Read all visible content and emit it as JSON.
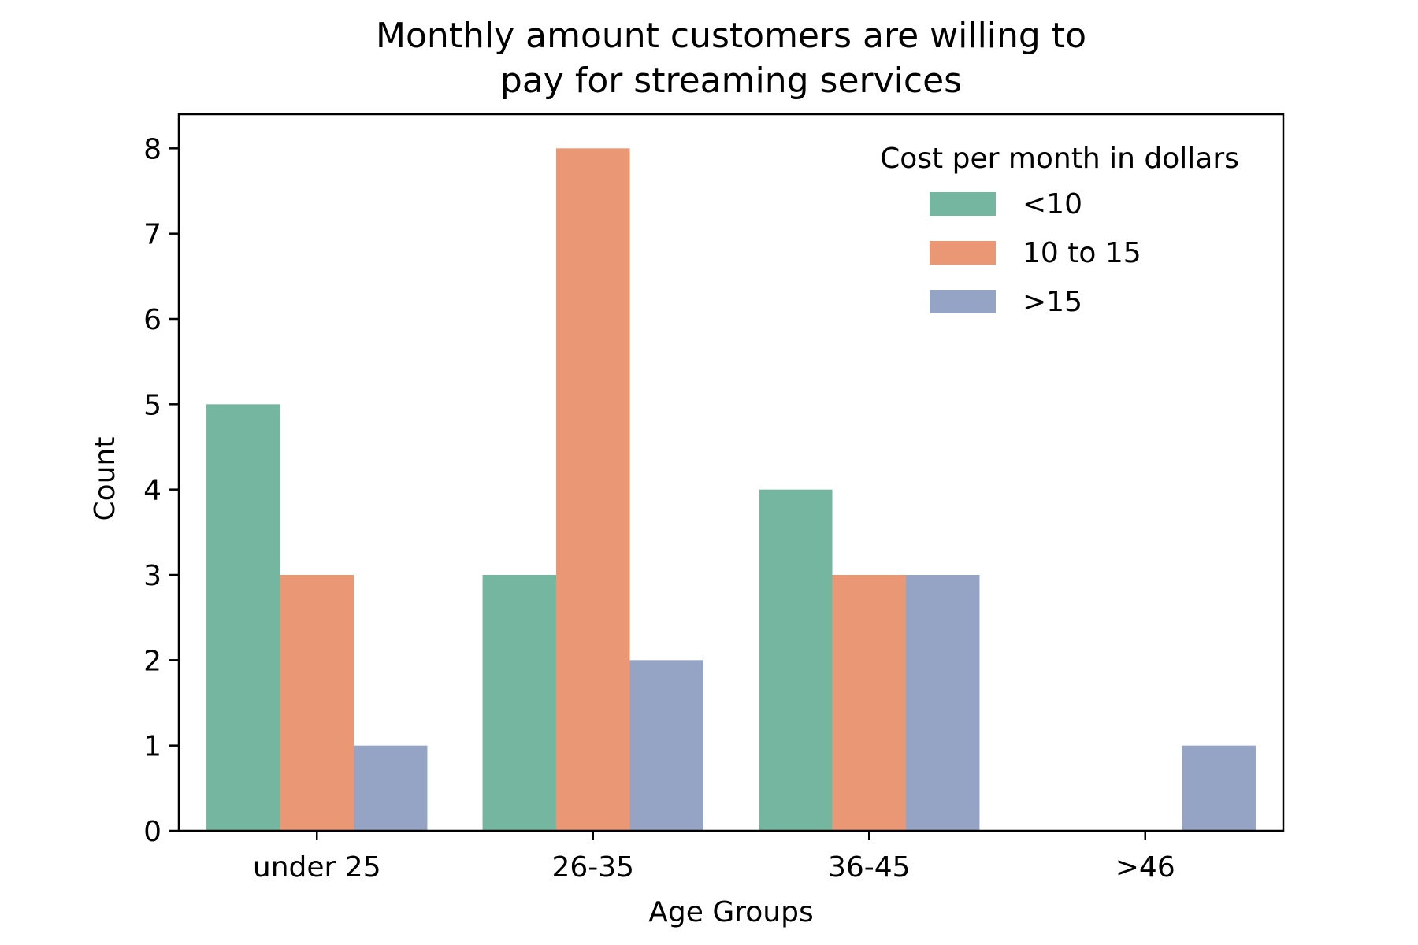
{
  "chart_data": {
    "type": "bar",
    "title": [
      "Monthly amount customers are willing to",
      "pay for streaming services"
    ],
    "xlabel": "Age Groups",
    "ylabel": "Count",
    "categories": [
      "under 25",
      "26-35",
      "36-45",
      ">46"
    ],
    "ylim": [
      0,
      8.4
    ],
    "yticks": [
      0,
      1,
      2,
      3,
      4,
      5,
      6,
      7,
      8
    ],
    "grid": false,
    "legend": {
      "title": "Cost per month in dollars",
      "placement": "top-right"
    },
    "series": [
      {
        "name": "<10",
        "color": "#75b6a0",
        "values": [
          5,
          3,
          4,
          0
        ]
      },
      {
        "name": "10 to 15",
        "color": "#e99775",
        "values": [
          3,
          8,
          3,
          0
        ]
      },
      {
        "name": ">15",
        "color": "#95a4c4",
        "values": [
          1,
          2,
          3,
          1
        ]
      }
    ]
  }
}
